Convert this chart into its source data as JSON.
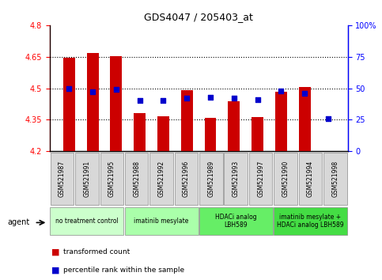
{
  "title": "GDS4047 / 205403_at",
  "samples": [
    "GSM521987",
    "GSM521991",
    "GSM521995",
    "GSM521988",
    "GSM521992",
    "GSM521996",
    "GSM521989",
    "GSM521993",
    "GSM521997",
    "GSM521990",
    "GSM521994",
    "GSM521998"
  ],
  "bar_values": [
    4.644,
    4.667,
    4.653,
    4.38,
    4.365,
    4.492,
    4.358,
    4.437,
    4.362,
    4.483,
    4.505,
    4.201
  ],
  "dot_values": [
    50,
    47,
    49,
    40,
    40,
    42,
    43,
    42,
    41,
    48,
    46,
    26
  ],
  "ylim_left": [
    4.2,
    4.8
  ],
  "ylim_right": [
    0,
    100
  ],
  "yticks_left": [
    4.2,
    4.35,
    4.5,
    4.65,
    4.8
  ],
  "yticks_right": [
    0,
    25,
    50,
    75,
    100
  ],
  "ytick_labels_left": [
    "4.2",
    "4.35",
    "4.5",
    "4.65",
    "4.8"
  ],
  "ytick_labels_right": [
    "0",
    "25",
    "50",
    "75",
    "100%"
  ],
  "hlines": [
    4.35,
    4.5,
    4.65
  ],
  "bar_color": "#cc0000",
  "dot_color": "#0000cc",
  "bar_bottom": 4.2,
  "agent_groups": [
    {
      "label": "no treatment control",
      "start": 0,
      "end": 3,
      "color": "#ccffcc"
    },
    {
      "label": "imatinib mesylate",
      "start": 3,
      "end": 6,
      "color": "#aaffaa"
    },
    {
      "label": "HDACi analog\nLBH589",
      "start": 6,
      "end": 9,
      "color": "#66ee66"
    },
    {
      "label": "imatinib mesylate +\nHDACi analog LBH589",
      "start": 9,
      "end": 12,
      "color": "#44dd44"
    }
  ],
  "background_color": "#ffffff",
  "plot_bg_color": "#ffffff",
  "bar_width": 0.5,
  "agent_label": "agent",
  "legend_transformed": "transformed count",
  "legend_percentile": "percentile rank within the sample"
}
